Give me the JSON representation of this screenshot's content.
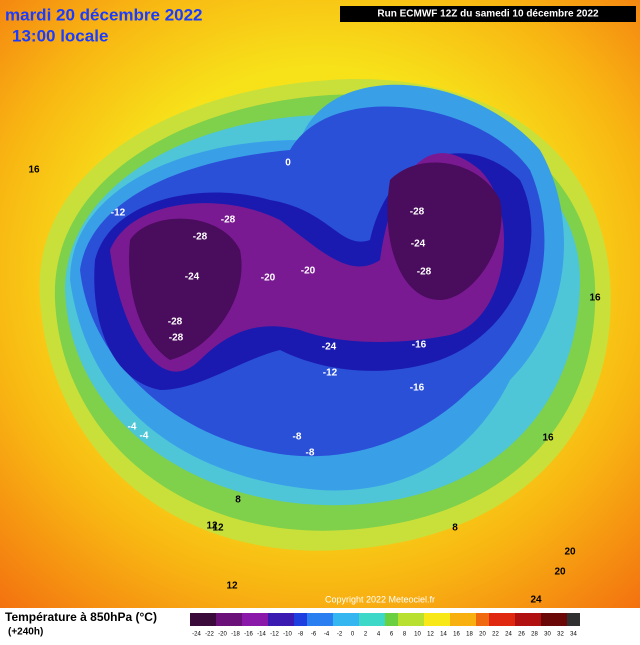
{
  "header": {
    "date": "mardi 20 décembre 2022",
    "time": "13:00 locale",
    "run": "Run ECMWF 12Z du samedi 10 décembre 2022"
  },
  "footer": {
    "title": "Température à 850hPa (°C)",
    "lead": "(+240h)",
    "copyright": "Copyright 2022 Meteociel.fr"
  },
  "colorbar": {
    "ticks": [
      -24,
      -22,
      -20,
      -18,
      -16,
      -14,
      -12,
      -10,
      -8,
      -6,
      -4,
      -2,
      0,
      2,
      4,
      6,
      8,
      10,
      12,
      14,
      16,
      18,
      20,
      22,
      24,
      26,
      28,
      30,
      32,
      34
    ]
  },
  "map": {
    "contour_labels": [
      -28,
      -28,
      -24,
      -28,
      -28,
      -28,
      -24,
      -28,
      -24,
      -20,
      -20,
      -16,
      -16,
      -12,
      -8,
      -8,
      -12,
      -4,
      -4,
      0,
      8,
      12,
      12,
      16,
      16,
      16,
      20,
      20,
      24,
      8,
      12
    ]
  }
}
